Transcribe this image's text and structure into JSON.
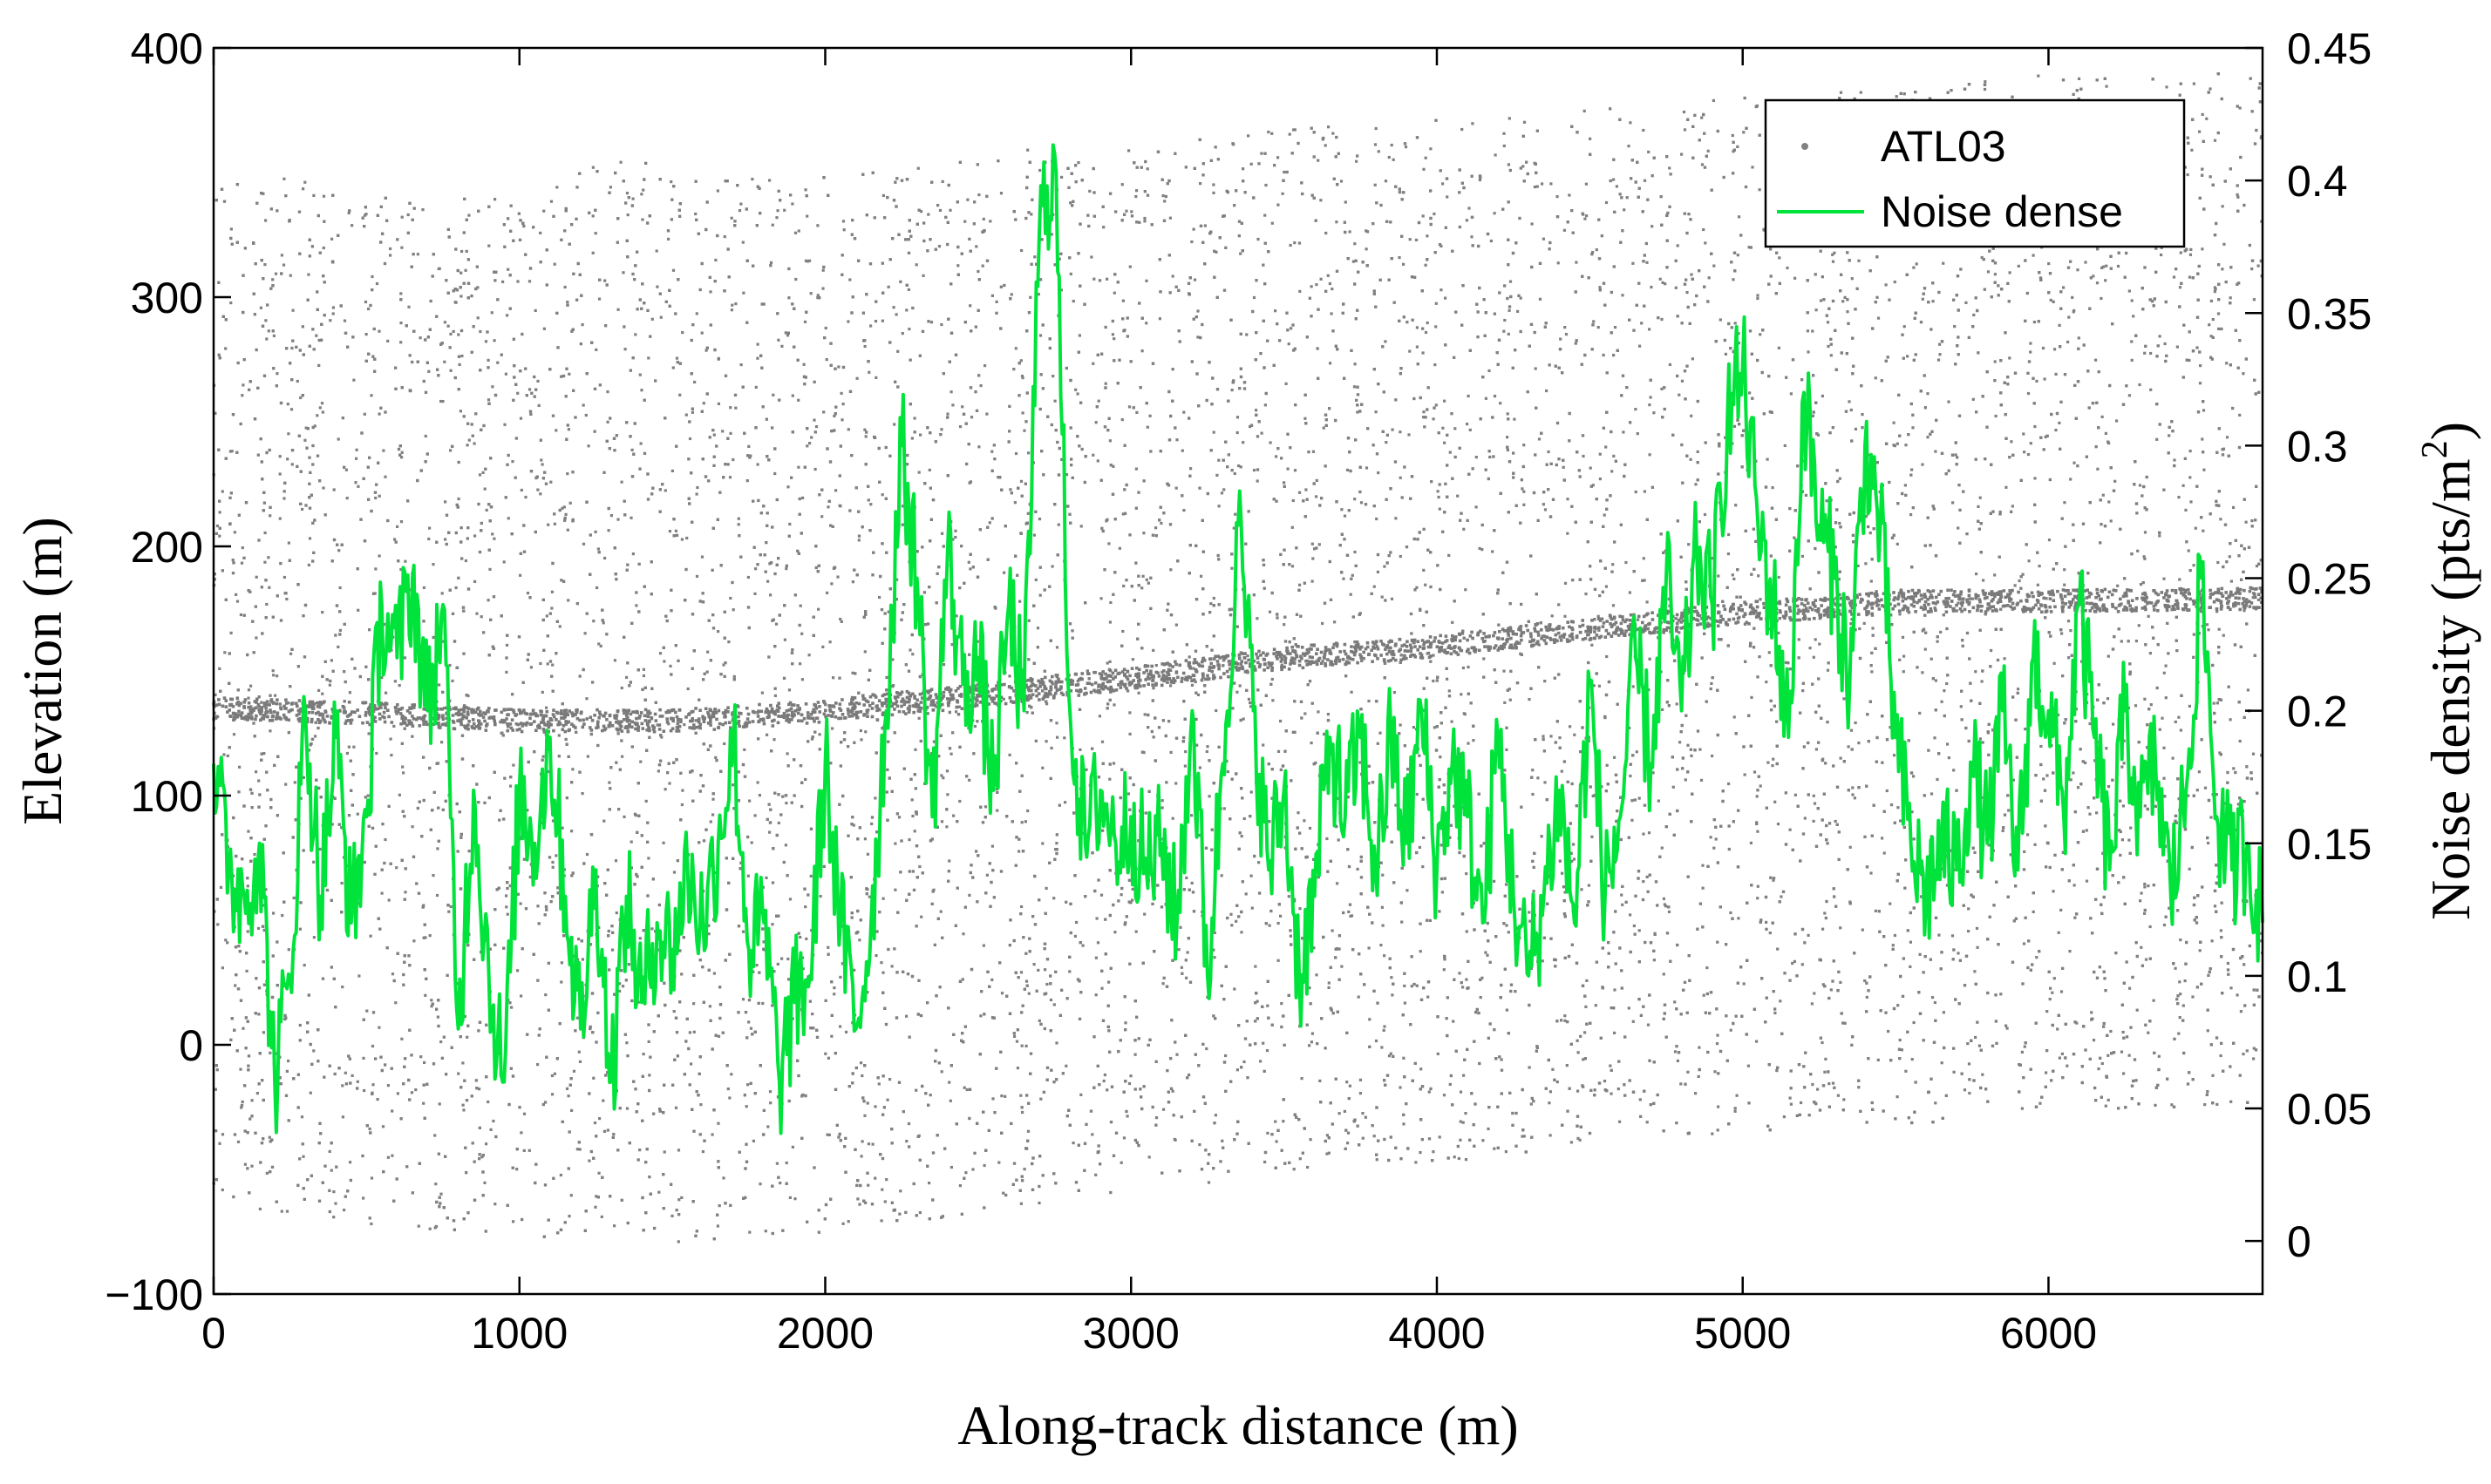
{
  "chart_data": {
    "type": "scatter",
    "title": "",
    "xlabel": "Along-track distance (m)",
    "ylabel_left": "Elevation (m)",
    "ylabel_right_main": "Noise density (pts/m",
    "ylabel_right_sup": "2",
    "ylabel_right_end": ")",
    "xlim": [
      0,
      6700
    ],
    "ylim_left": [
      -100,
      400
    ],
    "ylim_right": [
      -0.02,
      0.45
    ],
    "xticks": [
      "0",
      "1000",
      "2000",
      "3000",
      "4000",
      "5000",
      "6000"
    ],
    "yticks_left": [
      "−100",
      "0",
      "100",
      "200",
      "300",
      "400"
    ],
    "yticks_right": [
      "0",
      "0.05",
      "0.1",
      "0.15",
      "0.2",
      "0.25",
      "0.3",
      "0.35",
      "0.4",
      "0.45"
    ],
    "grid": false,
    "legend_position": "top-right",
    "series": [
      {
        "name": "ATL03",
        "kind": "scatter",
        "color": "#808080",
        "axis": "left",
        "noise_band_bottom": [
          [
            0,
            -65
          ],
          [
            500,
            -72
          ],
          [
            1000,
            -78
          ],
          [
            1500,
            -80
          ],
          [
            2000,
            -75
          ],
          [
            2500,
            -68
          ],
          [
            3000,
            -60
          ],
          [
            3500,
            -52
          ],
          [
            4000,
            -48
          ],
          [
            4500,
            -40
          ],
          [
            5000,
            -35
          ],
          [
            5500,
            -32
          ],
          [
            6000,
            -28
          ],
          [
            6700,
            -25
          ]
        ],
        "noise_band_top": [
          [
            0,
            350
          ],
          [
            500,
            345
          ],
          [
            1000,
            340
          ],
          [
            1200,
            350
          ],
          [
            1300,
            360
          ],
          [
            1500,
            350
          ],
          [
            2000,
            348
          ],
          [
            2500,
            355
          ],
          [
            2750,
            362
          ],
          [
            3000,
            360
          ],
          [
            3500,
            368
          ],
          [
            4000,
            372
          ],
          [
            4500,
            375
          ],
          [
            5000,
            380
          ],
          [
            5500,
            385
          ],
          [
            6000,
            390
          ],
          [
            6700,
            390
          ]
        ],
        "surface": [
          [
            0,
            135
          ],
          [
            500,
            133
          ],
          [
            1000,
            130
          ],
          [
            1500,
            130
          ],
          [
            1900,
            133
          ],
          [
            2500,
            140
          ],
          [
            3000,
            147
          ],
          [
            3500,
            155
          ],
          [
            4000,
            160
          ],
          [
            4500,
            167
          ],
          [
            5000,
            173
          ],
          [
            5500,
            178
          ],
          [
            6000,
            178
          ],
          [
            6700,
            179
          ]
        ]
      },
      {
        "name": "Noise dense",
        "kind": "line",
        "color": "#00e33a",
        "axis": "right",
        "x": [
          0,
          50,
          100,
          150,
          200,
          250,
          300,
          350,
          400,
          450,
          500,
          550,
          600,
          650,
          700,
          750,
          800,
          850,
          900,
          950,
          1000,
          1050,
          1100,
          1150,
          1200,
          1250,
          1300,
          1350,
          1400,
          1450,
          1500,
          1550,
          1600,
          1650,
          1700,
          1750,
          1800,
          1850,
          1900,
          1950,
          2000,
          2050,
          2100,
          2150,
          2200,
          2250,
          2300,
          2350,
          2400,
          2450,
          2500,
          2550,
          2600,
          2650,
          2700,
          2750,
          2800,
          2850,
          2900,
          2950,
          3000,
          3050,
          3100,
          3150,
          3200,
          3250,
          3300,
          3350,
          3400,
          3450,
          3500,
          3550,
          3600,
          3650,
          3700,
          3750,
          3800,
          3850,
          3900,
          3950,
          4000,
          4050,
          4100,
          4150,
          4200,
          4250,
          4300,
          4350,
          4400,
          4450,
          4500,
          4550,
          4600,
          4650,
          4700,
          4750,
          4800,
          4850,
          4900,
          4950,
          5000,
          5050,
          5100,
          5150,
          5200,
          5250,
          5300,
          5350,
          5400,
          5450,
          5500,
          5550,
          5600,
          5650,
          5700,
          5750,
          5800,
          5850,
          5900,
          5950,
          6000,
          6050,
          6100,
          6150,
          6200,
          6250,
          6300,
          6350,
          6400,
          6450,
          6500,
          6550,
          6600,
          6650,
          6700
        ],
        "y": [
          0.18,
          0.14,
          0.13,
          0.15,
          0.06,
          0.1,
          0.2,
          0.13,
          0.19,
          0.12,
          0.16,
          0.24,
          0.22,
          0.25,
          0.2,
          0.24,
          0.08,
          0.17,
          0.1,
          0.06,
          0.17,
          0.15,
          0.19,
          0.13,
          0.08,
          0.14,
          0.06,
          0.13,
          0.09,
          0.12,
          0.11,
          0.14,
          0.12,
          0.15,
          0.19,
          0.11,
          0.12,
          0.06,
          0.09,
          0.1,
          0.18,
          0.12,
          0.08,
          0.12,
          0.2,
          0.3,
          0.25,
          0.16,
          0.26,
          0.21,
          0.22,
          0.17,
          0.24,
          0.2,
          0.38,
          0.41,
          0.2,
          0.15,
          0.17,
          0.15,
          0.16,
          0.14,
          0.15,
          0.12,
          0.2,
          0.1,
          0.18,
          0.27,
          0.2,
          0.14,
          0.17,
          0.1,
          0.13,
          0.19,
          0.16,
          0.19,
          0.14,
          0.19,
          0.15,
          0.2,
          0.14,
          0.18,
          0.16,
          0.12,
          0.19,
          0.13,
          0.1,
          0.13,
          0.17,
          0.12,
          0.21,
          0.13,
          0.16,
          0.22,
          0.18,
          0.25,
          0.2,
          0.26,
          0.24,
          0.31,
          0.33,
          0.27,
          0.24,
          0.19,
          0.32,
          0.27,
          0.25,
          0.21,
          0.3,
          0.27,
          0.19,
          0.15,
          0.13,
          0.15,
          0.14,
          0.18,
          0.15,
          0.2,
          0.14,
          0.22,
          0.2,
          0.16,
          0.24,
          0.19,
          0.14,
          0.2,
          0.16,
          0.18,
          0.13,
          0.17,
          0.25,
          0.16,
          0.14,
          0.15,
          0.12
        ]
      }
    ]
  }
}
